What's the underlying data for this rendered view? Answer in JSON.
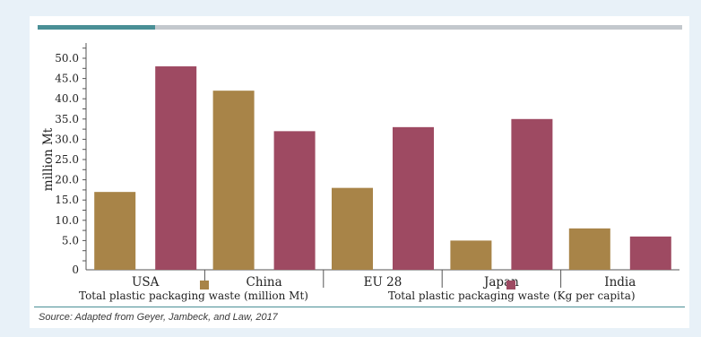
{
  "source": "Source:   Adapted from Geyer, Jambeck, and Law, 2017",
  "colors": {
    "background": "#e8f1f8",
    "top_bar_accent": "#4a8f96",
    "top_bar_rest": "#c3c8cd",
    "bottom_rule": "#4a8f96"
  },
  "chart_data": {
    "type": "bar",
    "title": "",
    "ylabel": "million Mt",
    "xlabel": "",
    "categories": [
      "USA",
      "China",
      "EU 28",
      "Japan",
      "India"
    ],
    "yticks": [
      "0",
      "5.0",
      "10.0",
      "15.0",
      "20.0",
      "25.0",
      "30.0",
      "35.0",
      "40.0",
      "45.0",
      "50.0"
    ],
    "ylim": [
      0,
      50
    ],
    "grid": false,
    "legend_position": "bottom",
    "series": [
      {
        "name": "Total plastic packaging waste (million Mt)",
        "color": "#a88448",
        "values": [
          17,
          42,
          18,
          5,
          8
        ]
      },
      {
        "name": "Total plastic packaging waste (Kg per capita)",
        "color": "#9e4a62",
        "values": [
          48,
          32,
          33,
          35,
          6
        ]
      }
    ]
  }
}
